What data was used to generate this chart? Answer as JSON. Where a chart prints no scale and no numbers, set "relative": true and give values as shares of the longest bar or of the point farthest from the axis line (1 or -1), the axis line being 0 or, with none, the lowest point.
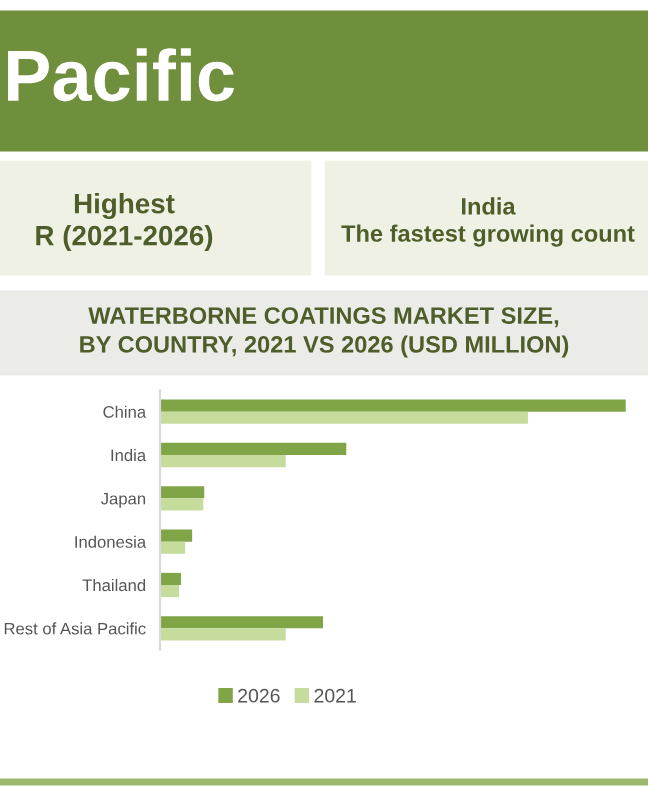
{
  "chart_data": {
    "type": "bar",
    "orientation": "horizontal",
    "relative": true,
    "title": "WATERBORNE COATINGS MARKET SIZE,\nBY COUNTRY, 2021 VS 2026 (USD MILLION)",
    "categories": [
      "China",
      "India",
      "Japan",
      "Indonesia",
      "Thailand",
      "Rest of Asia Pacific"
    ],
    "series": [
      {
        "name": "2026",
        "color": "#7fa547",
        "values": [
          1,
          0.4,
          0.095,
          0.069,
          0.045,
          0.35
        ]
      },
      {
        "name": "2021",
        "color": "#c5dc9c",
        "values": [
          0.79,
          0.27,
          0.093,
          0.054,
          0.041,
          0.27
        ]
      }
    ],
    "legend": "bottom",
    "annotations": [
      "Pacific",
      "Highest\nR (2021-2026)",
      "India\nThe fastest growing count"
    ]
  }
}
